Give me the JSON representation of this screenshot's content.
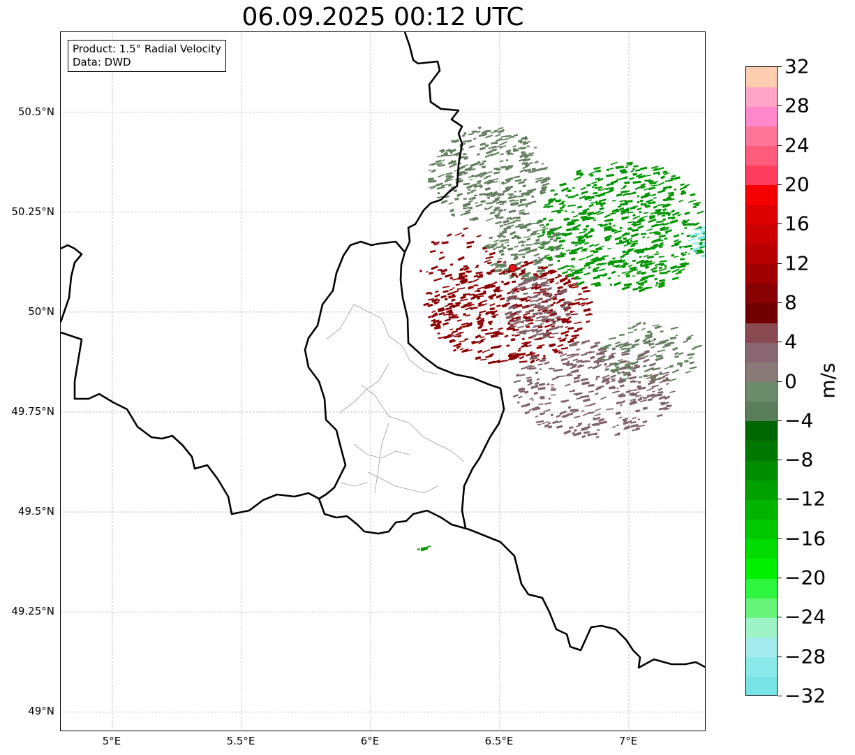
{
  "title": "06.09.2025 00:12 UTC",
  "info": {
    "product": "Product: 1.5° Radial Velocity",
    "data": "Data: DWD"
  },
  "map": {
    "lon_range": [
      4.8,
      7.3
    ],
    "lat_range": [
      48.95,
      50.7
    ],
    "grid": true,
    "lat_ticks": [
      {
        "value": 50.5,
        "label": "50.5°N"
      },
      {
        "value": 50.25,
        "label": "50.25°N"
      },
      {
        "value": 50.0,
        "label": "50°N"
      },
      {
        "value": 49.75,
        "label": "49.75°N"
      },
      {
        "value": 49.5,
        "label": "49.5°N"
      },
      {
        "value": 49.25,
        "label": "49.25°N"
      },
      {
        "value": 49.0,
        "label": "49°N"
      }
    ],
    "lon_ticks": [
      {
        "value": 5.0,
        "label": "5°E"
      },
      {
        "value": 5.5,
        "label": "5.5°E"
      },
      {
        "value": 6.0,
        "label": "6°E"
      },
      {
        "value": 6.5,
        "label": "6.5°E"
      },
      {
        "value": 7.0,
        "label": "7°E"
      }
    ],
    "radar_site": {
      "lon": 6.55,
      "lat": 50.11,
      "color": "#e8101a"
    }
  },
  "colorbar": {
    "unit": "m/s",
    "min": -32,
    "max": 32,
    "ticks": [
      {
        "value": 32,
        "label": "32"
      },
      {
        "value": 28,
        "label": "28"
      },
      {
        "value": 24,
        "label": "24"
      },
      {
        "value": 20,
        "label": "20"
      },
      {
        "value": 16,
        "label": "16"
      },
      {
        "value": 12,
        "label": "12"
      },
      {
        "value": 8,
        "label": "8"
      },
      {
        "value": 4,
        "label": "4"
      },
      {
        "value": 0,
        "label": "0"
      },
      {
        "value": -4,
        "label": "−4"
      },
      {
        "value": -8,
        "label": "−8"
      },
      {
        "value": -12,
        "label": "−12"
      },
      {
        "value": -16,
        "label": "−16"
      },
      {
        "value": -20,
        "label": "−20"
      },
      {
        "value": -24,
        "label": "−24"
      },
      {
        "value": -28,
        "label": "−28"
      },
      {
        "value": -32,
        "label": "−32"
      }
    ],
    "colors": [
      "#78e3e6",
      "#8be8ea",
      "#a6ebee",
      "#9ef3c6",
      "#66f57a",
      "#2ef53e",
      "#00f000",
      "#00dc00",
      "#00c800",
      "#00b400",
      "#00a000",
      "#008c00",
      "#007800",
      "#006600",
      "#5a7d5a",
      "#6b8b6b",
      "#8a7a78",
      "#8a6672",
      "#8a4a52",
      "#700000",
      "#880000",
      "#a00000",
      "#b80000",
      "#cc0000",
      "#dd0000",
      "#f50000",
      "#ff3d5f",
      "#ff5c7d",
      "#ff7599",
      "#ff88cc",
      "#ffa6c8",
      "#ffcdb0"
    ]
  },
  "echo_colors": {
    "outbound_red": "#8b0000",
    "outbound_gray": "#806268",
    "inbound_green": "#009600",
    "inbound_gray": "#62805e",
    "fast_inbound": "#80e6e6"
  }
}
